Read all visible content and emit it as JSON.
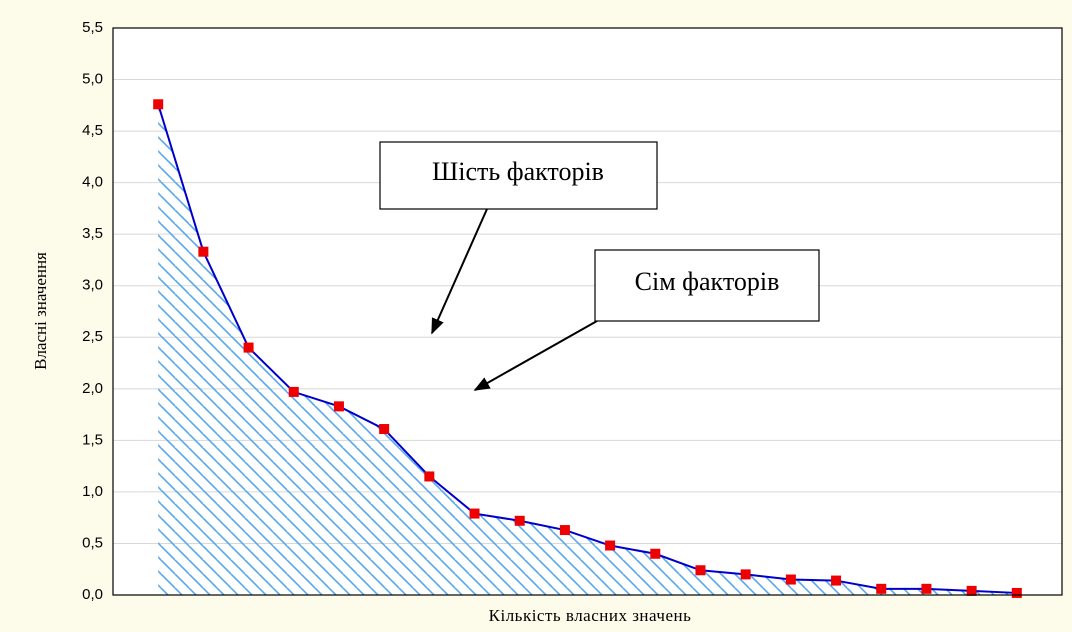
{
  "chart_data": {
    "type": "line",
    "x_label": "Кількість власних значень",
    "y_label": "Власні значення",
    "categories": [
      null,
      null,
      null,
      null,
      null,
      null,
      null,
      null,
      null,
      null,
      null,
      null,
      null,
      null,
      null,
      null,
      null,
      null,
      null,
      null
    ],
    "values": [
      4.76,
      3.33,
      2.4,
      1.97,
      1.83,
      1.61,
      1.15,
      0.79,
      0.72,
      0.63,
      0.48,
      0.4,
      0.24,
      0.2,
      0.15,
      0.14,
      0.06,
      0.06,
      0.04,
      0.02
    ],
    "color": "#0000cc",
    "marker_color": "#ee0000",
    "fill_color": "#5aa8ee",
    "ylim": [
      0,
      5.5
    ],
    "yticks": [
      {
        "value": 0,
        "label": "0,0"
      },
      {
        "value": 0.5,
        "label": "0,5"
      },
      {
        "value": 1,
        "label": "1,0"
      },
      {
        "value": 1.5,
        "label": "1,5"
      },
      {
        "value": 2,
        "label": "2,0"
      },
      {
        "value": 2.5,
        "label": "2,5"
      },
      {
        "value": 3,
        "label": "3,0"
      },
      {
        "value": 3.5,
        "label": "3,5"
      },
      {
        "value": 4,
        "label": "4,0"
      },
      {
        "value": 4.5,
        "label": "4,5"
      },
      {
        "value": 5,
        "label": "5,0"
      },
      {
        "value": 5.5,
        "label": "5,5"
      }
    ],
    "grid": true,
    "annotations": [
      "Шість факторів",
      "Сім факторів"
    ]
  }
}
